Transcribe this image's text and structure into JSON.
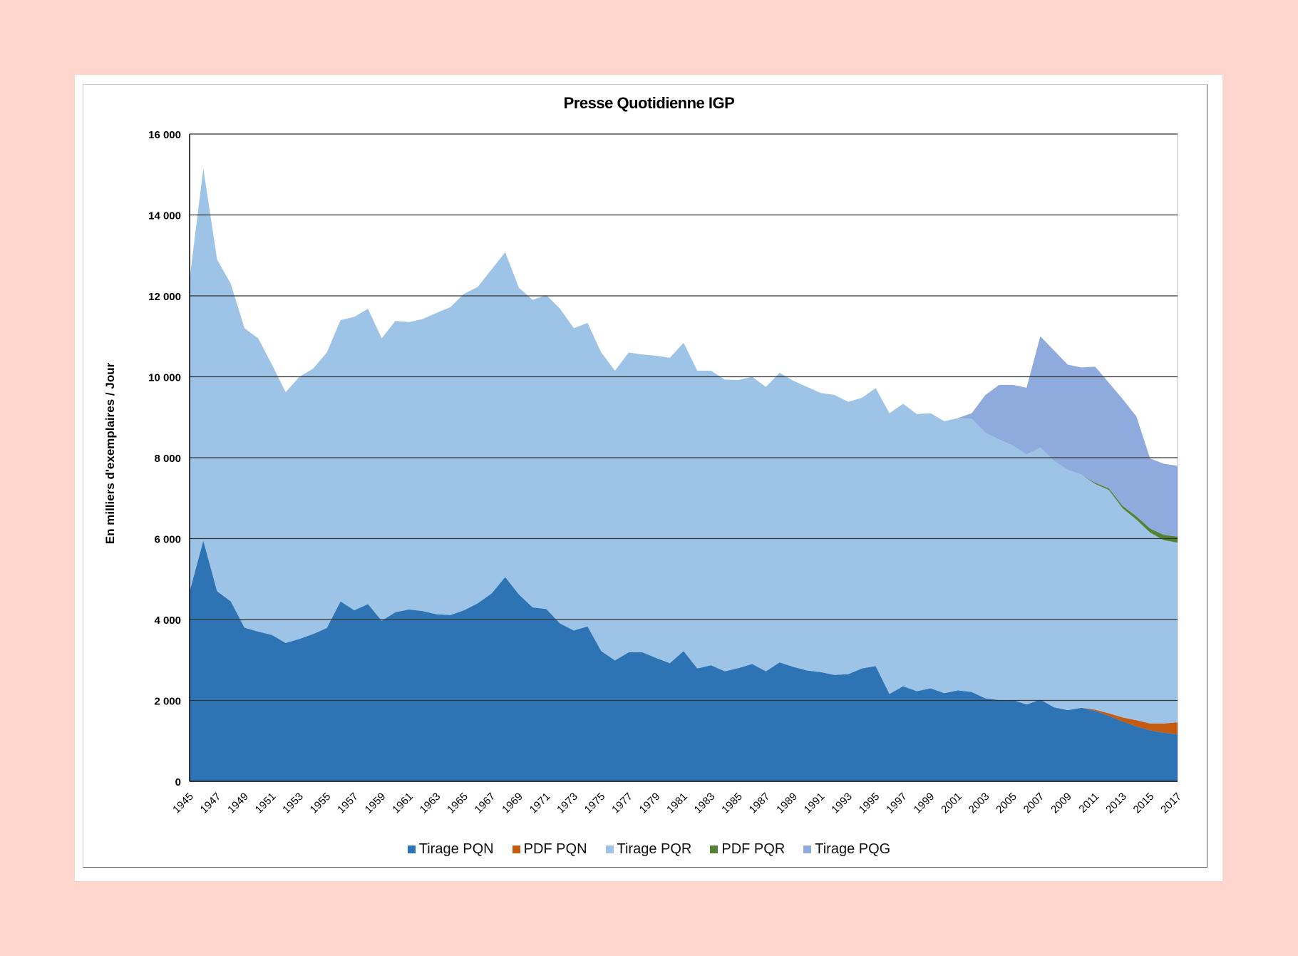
{
  "chart_data": {
    "type": "area",
    "stacked": true,
    "title": "Presse Quotidienne IGP",
    "ylabel": "En milliers d'exemplaires / Jour",
    "xlabel": "",
    "ylim": [
      0,
      16000
    ],
    "yticks": [
      0,
      2000,
      4000,
      6000,
      8000,
      10000,
      12000,
      14000,
      16000
    ],
    "ytick_labels": [
      "0",
      "2 000",
      "4 000",
      "6 000",
      "8 000",
      "10 000",
      "12 000",
      "14 000",
      "16 000"
    ],
    "grid": true,
    "legend_position": "bottom",
    "x": [
      1945,
      1946,
      1947,
      1948,
      1949,
      1950,
      1951,
      1952,
      1953,
      1954,
      1955,
      1956,
      1957,
      1958,
      1959,
      1960,
      1961,
      1962,
      1963,
      1964,
      1965,
      1966,
      1967,
      1968,
      1969,
      1970,
      1971,
      1972,
      1973,
      1974,
      1975,
      1976,
      1977,
      1978,
      1979,
      1980,
      1981,
      1982,
      1983,
      1984,
      1985,
      1986,
      1987,
      1988,
      1989,
      1990,
      1991,
      1992,
      1993,
      1994,
      1995,
      1996,
      1997,
      1998,
      1999,
      2000,
      2001,
      2002,
      2003,
      2004,
      2005,
      2006,
      2007,
      2008,
      2009,
      2010,
      2011,
      2012,
      2013,
      2014,
      2015,
      2016,
      2017
    ],
    "xtick_labels": [
      "1945",
      "1947",
      "1949",
      "1951",
      "1953",
      "1955",
      "1957",
      "1959",
      "1961",
      "1963",
      "1965",
      "1967",
      "1969",
      "1971",
      "1973",
      "1975",
      "1977",
      "1979",
      "1981",
      "1983",
      "1985",
      "1987",
      "1989",
      "1991",
      "1993",
      "1995",
      "1997",
      "1999",
      "2001",
      "2003",
      "2005",
      "2007",
      "2009",
      "2011",
      "2013",
      "2015",
      "2017"
    ],
    "series": [
      {
        "name": "Tirage PQN",
        "color": "#2E74B5",
        "values": [
          4690,
          5950,
          4700,
          4450,
          3800,
          3700,
          3620,
          3420,
          3520,
          3640,
          3790,
          4450,
          4230,
          4380,
          3970,
          4180,
          4250,
          4210,
          4130,
          4110,
          4230,
          4400,
          4640,
          5050,
          4620,
          4300,
          4260,
          3900,
          3730,
          3830,
          3220,
          2990,
          3190,
          3190,
          3050,
          2920,
          3220,
          2790,
          2870,
          2720,
          2800,
          2900,
          2720,
          2940,
          2830,
          2740,
          2700,
          2630,
          2650,
          2790,
          2850,
          2160,
          2350,
          2230,
          2300,
          2180,
          2250,
          2210,
          2050,
          2010,
          2010,
          1900,
          2020,
          1830,
          1760,
          1820,
          1740,
          1620,
          1480,
          1360,
          1260,
          1200,
          1160
        ]
      },
      {
        "name": "PDF PQN",
        "color": "#C55A11",
        "values": [
          0,
          0,
          0,
          0,
          0,
          0,
          0,
          0,
          0,
          0,
          0,
          0,
          0,
          0,
          0,
          0,
          0,
          0,
          0,
          0,
          0,
          0,
          0,
          0,
          0,
          0,
          0,
          0,
          0,
          0,
          0,
          0,
          0,
          0,
          0,
          0,
          0,
          0,
          0,
          0,
          0,
          0,
          0,
          0,
          0,
          0,
          0,
          0,
          0,
          0,
          0,
          0,
          0,
          0,
          0,
          0,
          0,
          0,
          0,
          0,
          0,
          0,
          0,
          0,
          0,
          0,
          30,
          60,
          100,
          150,
          170,
          230,
          300
        ]
      },
      {
        "name": "Tirage PQR",
        "color": "#9DC3E6",
        "values": [
          7710,
          9200,
          8200,
          7850,
          7400,
          7250,
          6680,
          6200,
          6480,
          6560,
          6810,
          6950,
          7250,
          7300,
          6980,
          7200,
          7100,
          7220,
          7450,
          7610,
          7820,
          7820,
          8010,
          8030,
          7580,
          7600,
          7760,
          7780,
          7470,
          7500,
          7380,
          7160,
          7410,
          7360,
          7470,
          7550,
          7620,
          7360,
          7280,
          7210,
          7120,
          7100,
          7030,
          7160,
          7070,
          7010,
          6900,
          6920,
          6730,
          6690,
          6870,
          6940,
          6980,
          6850,
          6800,
          6720,
          6730,
          6750,
          6570,
          6440,
          6290,
          6180,
          6230,
          6090,
          5940,
          5760,
          5580,
          5520,
          5170,
          4960,
          4720,
          4530,
          4440
        ]
      },
      {
        "name": "PDF PQR",
        "color": "#548235",
        "values": [
          0,
          0,
          0,
          0,
          0,
          0,
          0,
          0,
          0,
          0,
          0,
          0,
          0,
          0,
          0,
          0,
          0,
          0,
          0,
          0,
          0,
          0,
          0,
          0,
          0,
          0,
          0,
          0,
          0,
          0,
          0,
          0,
          0,
          0,
          0,
          0,
          0,
          0,
          0,
          0,
          0,
          0,
          0,
          0,
          0,
          0,
          0,
          0,
          0,
          0,
          0,
          0,
          0,
          0,
          0,
          0,
          0,
          0,
          0,
          0,
          0,
          0,
          0,
          0,
          0,
          0,
          30,
          40,
          60,
          80,
          100,
          130,
          150
        ]
      },
      {
        "name": "Tirage PQG",
        "color": "#8FAADC",
        "values": [
          0,
          0,
          0,
          0,
          0,
          0,
          0,
          0,
          0,
          0,
          0,
          0,
          0,
          0,
          0,
          0,
          0,
          0,
          0,
          0,
          0,
          0,
          0,
          0,
          0,
          0,
          0,
          0,
          0,
          0,
          0,
          0,
          0,
          0,
          0,
          0,
          0,
          0,
          0,
          0,
          0,
          0,
          0,
          0,
          0,
          0,
          0,
          0,
          0,
          0,
          0,
          0,
          0,
          0,
          0,
          0,
          0,
          140,
          930,
          1350,
          1500,
          1650,
          2750,
          2730,
          2600,
          2650,
          2870,
          2610,
          2640,
          2470,
          1730,
          1760,
          1750
        ]
      }
    ]
  }
}
